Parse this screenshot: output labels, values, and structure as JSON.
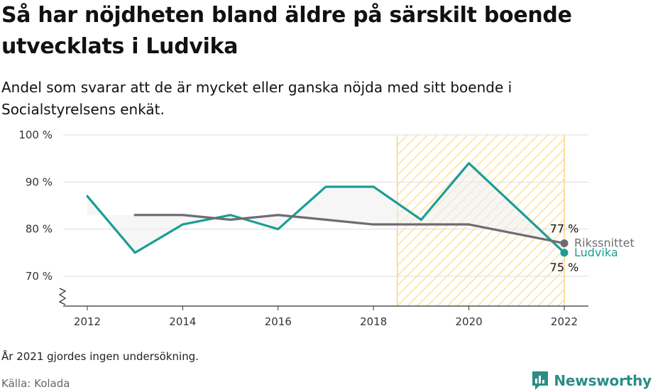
{
  "title": "Så har nöjdheten bland äldre på särskilt boende utvecklats i Ludvika",
  "subtitle": "Andel som svarar att de är mycket eller ganska nöjda med sitt boende i Socialstyrelsens enkät.",
  "note": "År 2021 gjordes ingen undersökning.",
  "source": "Källa: Kolada",
  "brand": {
    "name": "Newsworthy",
    "icon": "newsworthy-logo-icon",
    "color": "#2a8d86"
  },
  "chart_data": {
    "type": "line",
    "title": "Så har nöjdheten bland äldre på särskilt boende utvecklats i Ludvika",
    "ylim": [
      64,
      100
    ],
    "xlim": [
      2011.5,
      2022.5
    ],
    "y_ticks": [
      {
        "value": 70,
        "label": "70 %"
      },
      {
        "value": 80,
        "label": "80 %"
      },
      {
        "value": 90,
        "label": "90 %"
      },
      {
        "value": 100,
        "label": "100 %"
      }
    ],
    "x_ticks": [
      {
        "value": 2012,
        "label": "2012"
      },
      {
        "value": 2014,
        "label": "2014"
      },
      {
        "value": 2016,
        "label": "2016"
      },
      {
        "value": 2018,
        "label": "2018"
      },
      {
        "value": 2020,
        "label": "2020"
      },
      {
        "value": 2022,
        "label": "2022"
      }
    ],
    "grid": true,
    "axis_break": true,
    "highlight_range": [
      2018.5,
      2022
    ],
    "highlight_color": "#f5c242",
    "series": [
      {
        "name": "Ludvika",
        "color": "#1a9e95",
        "x": [
          2012,
          2013,
          2014,
          2015,
          2016,
          2017,
          2018,
          2019,
          2020,
          2022
        ],
        "y": [
          87,
          75,
          81,
          83,
          80,
          89,
          89,
          82,
          94,
          75
        ],
        "end_label": "75 %"
      },
      {
        "name": "Rikssnittet",
        "color": "#6e6c72",
        "x": [
          2013,
          2014,
          2015,
          2016,
          2017,
          2018,
          2019,
          2020,
          2022
        ],
        "y": [
          83,
          83,
          82,
          83,
          82,
          81,
          81,
          81,
          77
        ],
        "end_label": "77 %"
      }
    ]
  }
}
